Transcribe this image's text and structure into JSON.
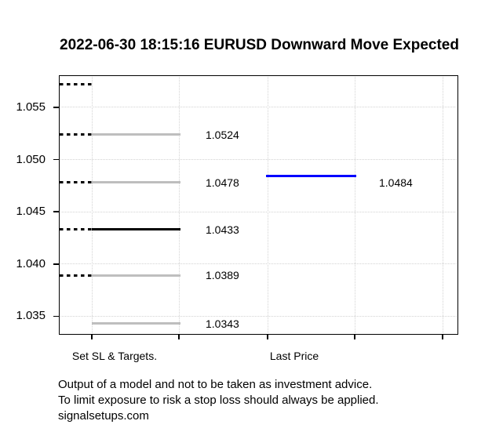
{
  "chart_data": {
    "type": "line",
    "title": "2022-06-30 18:15:16 EURUSD Downward Move Expected",
    "grid": true,
    "legend_position": "none",
    "x_axis": {
      "categories": [
        "Set SL & Targets.",
        "Last Price"
      ]
    },
    "y_axis": {
      "range": [
        1.0333,
        1.058
      ],
      "ticks": [
        {
          "value": 1.055,
          "label": "1.055"
        },
        {
          "value": 1.05,
          "label": "1.050"
        },
        {
          "value": 1.045,
          "label": "1.045"
        },
        {
          "value": 1.04,
          "label": "1.040"
        },
        {
          "value": 1.035,
          "label": "1.035"
        }
      ]
    },
    "series": [
      {
        "name": "Set SL & Targets.",
        "levels": [
          {
            "value": 1.0572,
            "label": "",
            "color": "#000000",
            "dashed_entry": true,
            "solid": false
          },
          {
            "value": 1.0524,
            "label": "1.0524",
            "color": "#bebebe",
            "dashed_entry": true,
            "solid": true
          },
          {
            "value": 1.0478,
            "label": "1.0478",
            "color": "#bebebe",
            "dashed_entry": true,
            "solid": true
          },
          {
            "value": 1.0433,
            "label": "1.0433",
            "color": "#000000",
            "dashed_entry": true,
            "solid": true
          },
          {
            "value": 1.0389,
            "label": "1.0389",
            "color": "#bebebe",
            "dashed_entry": true,
            "solid": true
          },
          {
            "value": 1.0343,
            "label": "1.0343",
            "color": "#bebebe",
            "dashed_entry": false,
            "solid": true
          }
        ]
      },
      {
        "name": "Last Price",
        "levels": [
          {
            "value": 1.0484,
            "label": "1.0484",
            "color": "#0000ff",
            "dashed_entry": false,
            "solid": true
          }
        ]
      }
    ],
    "colors": {
      "last_price_line": "#0000ff",
      "target_line": "#bebebe",
      "stop_dash": "#000000",
      "grid": "#d3d3d3"
    }
  },
  "footer": {
    "lines": [
      "Output of a model and not to be taken as investment advice.",
      "To limit exposure to risk a stop loss should always be applied.",
      "signalsetups.com"
    ]
  }
}
